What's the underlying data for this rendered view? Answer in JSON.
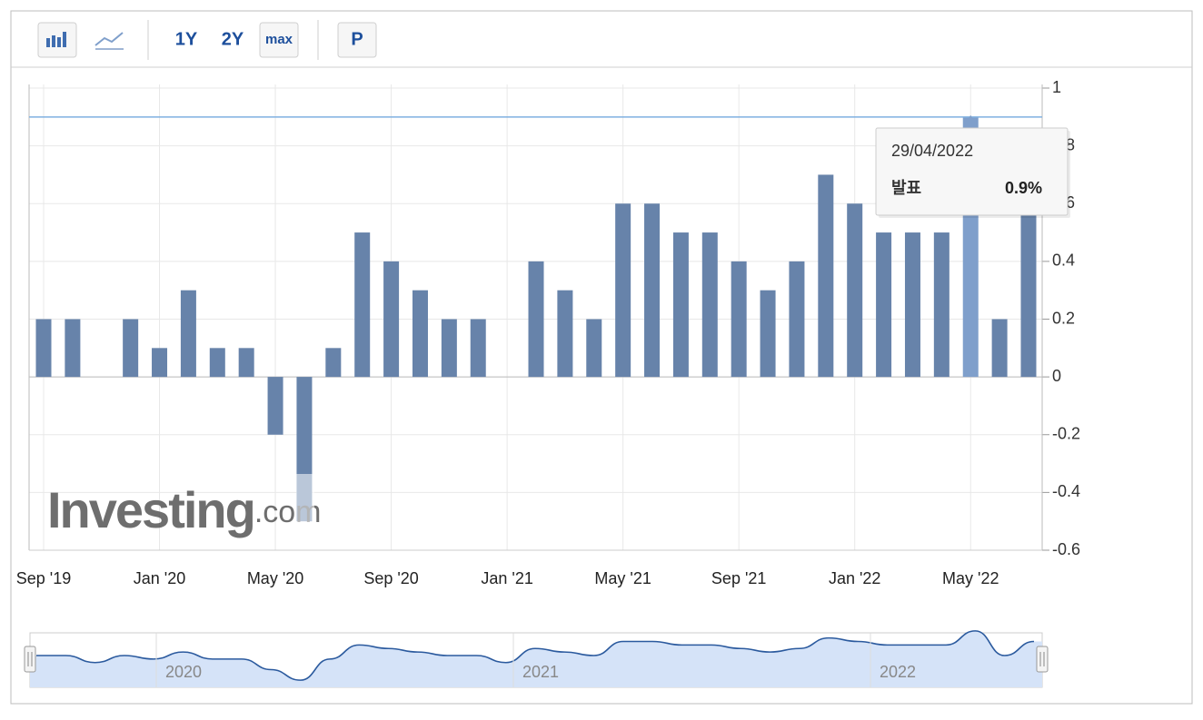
{
  "toolbar": {
    "buttons": [
      "1Y",
      "2Y",
      "max",
      "P"
    ]
  },
  "chart_data": {
    "type": "bar",
    "categories": [
      "Sep '19",
      null,
      null,
      null,
      "Jan '20",
      null,
      null,
      null,
      "May '20",
      null,
      null,
      null,
      "Sep '20",
      null,
      null,
      null,
      "Jan '21",
      null,
      null,
      null,
      "May '21",
      null,
      null,
      null,
      "Sep '21",
      null,
      null,
      null,
      "Jan '22",
      null,
      null,
      null,
      "May '22",
      null,
      null
    ],
    "values": [
      0.2,
      0.2,
      0,
      0.2,
      0.1,
      0.3,
      0.1,
      0.1,
      -0.2,
      -0.5,
      0.1,
      0.5,
      0.4,
      0.3,
      0.2,
      0.2,
      0,
      0.4,
      0.3,
      0.2,
      0.6,
      0.6,
      0.5,
      0.5,
      0.4,
      0.3,
      0.4,
      0.7,
      0.6,
      0.5,
      0.5,
      0.5,
      0.9,
      0.2,
      0.6
    ],
    "color": "#6783aa",
    "highlight_color": "#7f9fcb",
    "ylim": [
      -0.6,
      1
    ],
    "yticks": [
      -0.6,
      -0.4,
      -0.2,
      0,
      0.2,
      0.4,
      0.6,
      0.8,
      1
    ],
    "grid": true,
    "hover_index": 32,
    "tooltip": {
      "date": "29/04/2022",
      "name": "발표",
      "value_label": "0.9%"
    },
    "watermark": {
      "brand": "Investing",
      "suffix": ".com"
    },
    "navigator": {
      "years": [
        "2020",
        "2021",
        "2022"
      ]
    }
  }
}
